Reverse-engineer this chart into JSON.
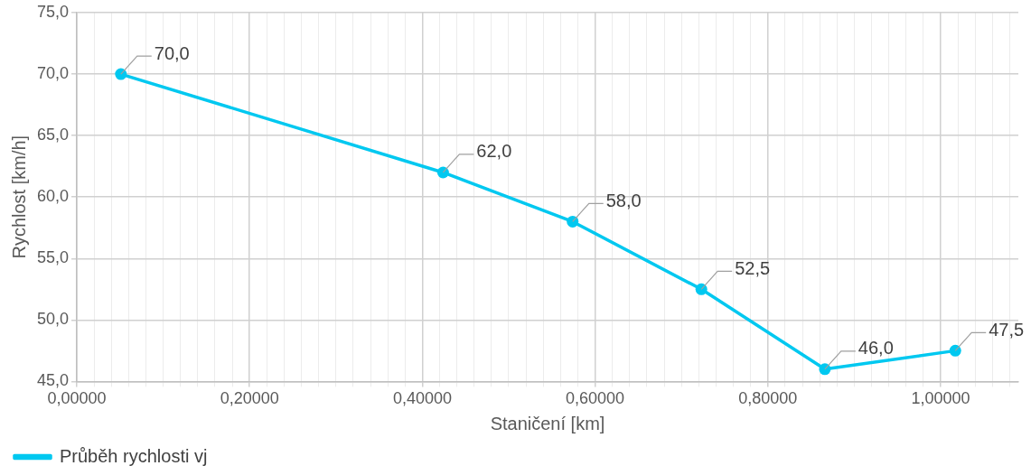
{
  "chart_data": {
    "type": "line",
    "xlabel": "Staničení [km]",
    "ylabel": "Rychlost [km/h]",
    "x": [
      0.051,
      0.424,
      0.574,
      0.723,
      0.866,
      1.017
    ],
    "series": [
      {
        "name": "Průběh rychlosti vj",
        "color": "#00c8f0",
        "values": [
          70.0,
          62.0,
          58.0,
          52.5,
          46.0,
          47.5
        ],
        "value_labels": [
          "70,0",
          "62,0",
          "58,0",
          "52,5",
          "46,0",
          "47,5"
        ]
      }
    ],
    "xlim": [
      0,
      1.09
    ],
    "xticks": [
      {
        "value": 0,
        "label": "0,00000"
      },
      {
        "value": 0.02,
        "label": null
      },
      {
        "value": 0.04,
        "label": null
      },
      {
        "value": 0.06,
        "label": null
      },
      {
        "value": 0.08,
        "label": null
      },
      {
        "value": 0.1,
        "label": null
      },
      {
        "value": 0.12,
        "label": null
      },
      {
        "value": 0.14,
        "label": null
      },
      {
        "value": 0.16,
        "label": null
      },
      {
        "value": 0.18,
        "label": null
      },
      {
        "value": 0.2,
        "label": "0,20000"
      },
      {
        "value": 0.22,
        "label": null
      },
      {
        "value": 0.24,
        "label": null
      },
      {
        "value": 0.26,
        "label": null
      },
      {
        "value": 0.28,
        "label": null
      },
      {
        "value": 0.3,
        "label": null
      },
      {
        "value": 0.32,
        "label": null
      },
      {
        "value": 0.34,
        "label": null
      },
      {
        "value": 0.36,
        "label": null
      },
      {
        "value": 0.38,
        "label": null
      },
      {
        "value": 0.4,
        "label": "0,40000"
      },
      {
        "value": 0.42,
        "label": null
      },
      {
        "value": 0.44,
        "label": null
      },
      {
        "value": 0.46,
        "label": null
      },
      {
        "value": 0.48,
        "label": null
      },
      {
        "value": 0.5,
        "label": null
      },
      {
        "value": 0.52,
        "label": null
      },
      {
        "value": 0.54,
        "label": null
      },
      {
        "value": 0.56,
        "label": null
      },
      {
        "value": 0.58,
        "label": null
      },
      {
        "value": 0.6,
        "label": "0,60000"
      },
      {
        "value": 0.62,
        "label": null
      },
      {
        "value": 0.64,
        "label": null
      },
      {
        "value": 0.66,
        "label": null
      },
      {
        "value": 0.68,
        "label": null
      },
      {
        "value": 0.7,
        "label": null
      },
      {
        "value": 0.72,
        "label": null
      },
      {
        "value": 0.74,
        "label": null
      },
      {
        "value": 0.76,
        "label": null
      },
      {
        "value": 0.78,
        "label": null
      },
      {
        "value": 0.8,
        "label": "0,80000"
      },
      {
        "value": 0.82,
        "label": null
      },
      {
        "value": 0.84,
        "label": null
      },
      {
        "value": 0.86,
        "label": null
      },
      {
        "value": 0.88,
        "label": null
      },
      {
        "value": 0.9,
        "label": null
      },
      {
        "value": 0.92,
        "label": null
      },
      {
        "value": 0.94,
        "label": null
      },
      {
        "value": 0.96,
        "label": null
      },
      {
        "value": 0.98,
        "label": null
      },
      {
        "value": 1.0,
        "label": "1,00000"
      },
      {
        "value": 1.02,
        "label": null
      },
      {
        "value": 1.04,
        "label": null
      },
      {
        "value": 1.06,
        "label": null
      },
      {
        "value": 1.08,
        "label": null
      }
    ],
    "ylim": [
      45,
      75
    ],
    "yticks": [
      {
        "value": 45,
        "label": "45,0"
      },
      {
        "value": 50,
        "label": "50,0"
      },
      {
        "value": 55,
        "label": "55,0"
      },
      {
        "value": 60,
        "label": "60,0"
      },
      {
        "value": 65,
        "label": "65,0"
      },
      {
        "value": 70,
        "label": "70,0"
      },
      {
        "value": 75,
        "label": "75,0"
      }
    ],
    "grid": true,
    "legend": "bottom left",
    "marker": "circle",
    "line_style": "solid"
  }
}
